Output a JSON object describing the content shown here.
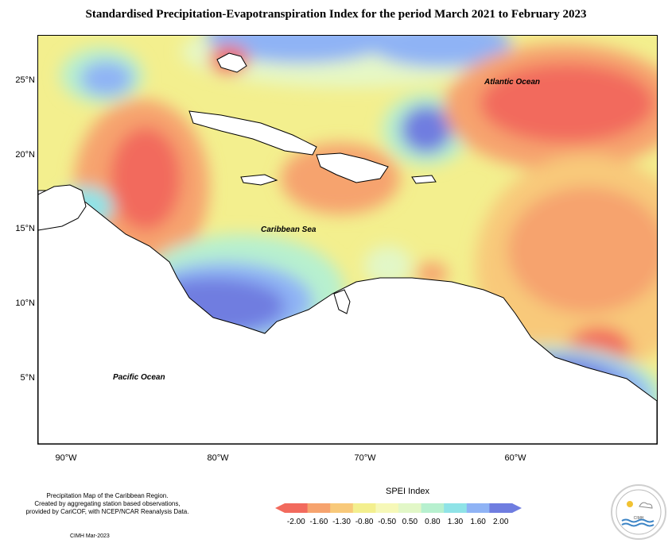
{
  "title": "Standardised Precipitation-Evapotranspiration Index for the period March 2021 to February 2023",
  "latitude_labels": [
    "25°N",
    "20°N",
    "15°N",
    "10°N",
    "5°N"
  ],
  "longitude_labels": [
    "90°W",
    "80°W",
    "70°W",
    "60°W"
  ],
  "map_labels": {
    "atlantic": "Atlantic Ocean",
    "caribbean": "Caribbean Sea",
    "pacific": "Pacific Ocean"
  },
  "footer": {
    "note_line1": "Precipitation Map of the Caribbean Region.",
    "note_line2": "Created by aggregating station based observations,",
    "note_line3": "provided by CariCOF, with NCEP/NCAR Reanalysis Data.",
    "credit": "CIMH Mar-2023"
  },
  "legend": {
    "title": "SPEI Index",
    "ticks": [
      "-2.00",
      "-1.60",
      "-1.30",
      "-0.80",
      "-0.50",
      "0.50",
      "0.80",
      "1.30",
      "1.60",
      "2.00"
    ],
    "colors": [
      "#f26a5d",
      "#f6a36e",
      "#f8c97a",
      "#f3ef8e",
      "#f6f8b8",
      "#e2f7c7",
      "#b7f0cf",
      "#8fe3e7",
      "#8fb3f5",
      "#6f7de0"
    ]
  },
  "logo": {
    "text": "CIMH"
  }
}
